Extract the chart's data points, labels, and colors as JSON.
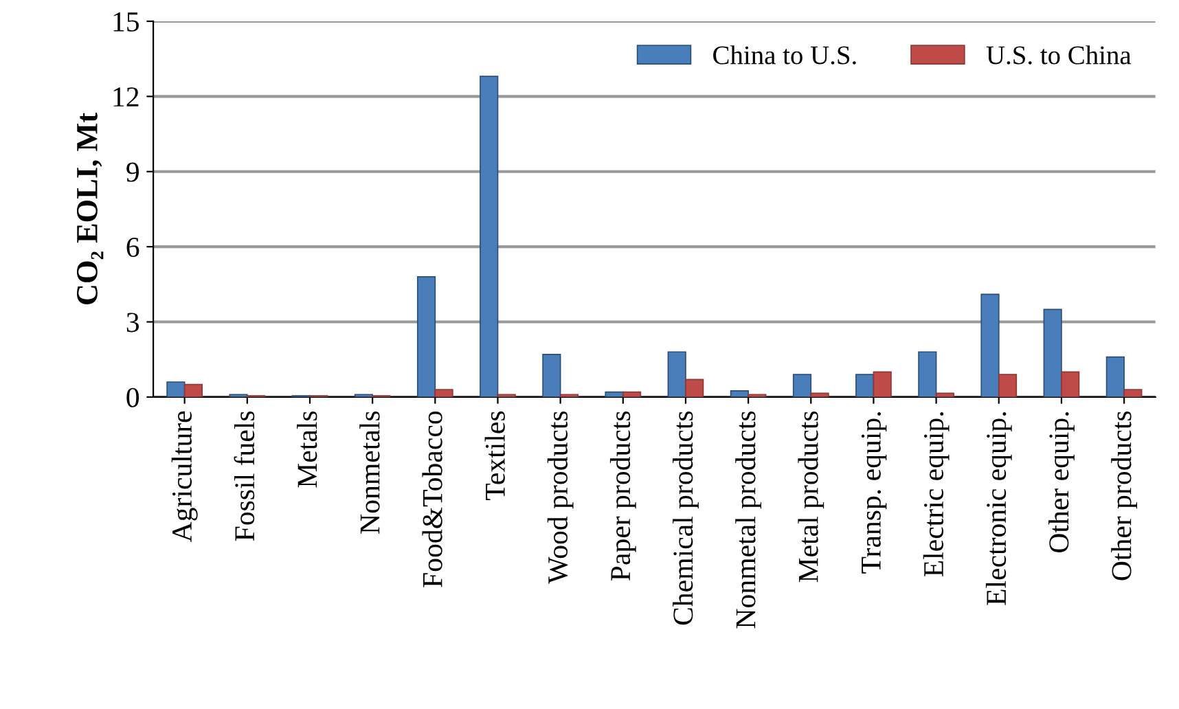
{
  "chart_data": {
    "type": "bar",
    "ylabel": "CO₂ EOLI, Mt",
    "categories": [
      "Agriculture",
      "Fossil fuels",
      "Metals",
      "Nonmetals",
      "Food&Tobacco",
      "Textiles",
      "Wood products",
      "Paper products",
      "Chemical products",
      "Nonmetal products",
      "Metal products",
      "Transp. equip.",
      "Electric equip.",
      "Electronic equip.",
      "Other equip.",
      "Other products"
    ],
    "series": [
      {
        "name": "China to U.S.",
        "color": "#4a7ebb",
        "values": [
          0.6,
          0.1,
          0.05,
          0.1,
          4.8,
          12.8,
          1.7,
          0.2,
          1.8,
          0.25,
          0.9,
          0.9,
          1.8,
          4.1,
          3.5,
          1.6
        ]
      },
      {
        "name": "U.S. to China",
        "color": "#be4b48",
        "values": [
          0.5,
          0.05,
          0.05,
          0.05,
          0.3,
          0.1,
          0.1,
          0.2,
          0.7,
          0.1,
          0.15,
          1.0,
          0.15,
          0.9,
          1.0,
          0.3
        ]
      }
    ],
    "ylim": [
      0,
      15
    ],
    "yticks": [
      0,
      3,
      6,
      9,
      12,
      15
    ],
    "grid": "y",
    "legend": "top right"
  }
}
